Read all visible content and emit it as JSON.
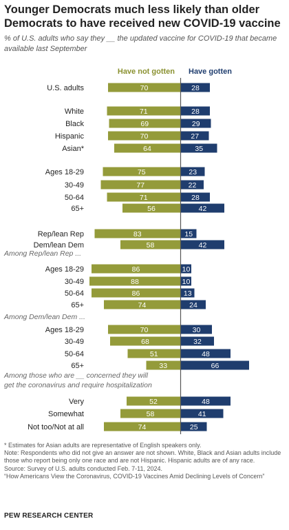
{
  "title": "Younger Democrats much less likely than older Democrats to have received new COVID-19 vaccine",
  "subtitle": "% of U.S. adults who say they __ the updated vaccine for COVID-19 that became available last September",
  "notes": [
    "* Estimates for Asian adults are representative of English speakers only.",
    "Note: Respondents who did not give an answer are not shown. White, Black and Asian adults include those who report being only one race and are not Hispanic. Hispanic adults are of any race.",
    "Source: Survey of U.S. adults conducted Feb. 7-11, 2024.",
    "“How Americans View the Coronavirus, COVID-19 Vaccines Amid Declining Levels of Concern”"
  ],
  "brand": "PEW RESEARCH CENTER",
  "colors": {
    "not_gotten": "#949B3A",
    "gotten": "#1F3D6E",
    "not_gotten_label": "#8A9130",
    "gotten_label": "#1F3D6E",
    "divider": "#555555"
  },
  "chart_data": {
    "type": "bar",
    "orientation": "horizontal-diverging",
    "series": [
      {
        "name": "Have not gotten",
        "values": [
          70,
          71,
          69,
          70,
          64,
          75,
          77,
          71,
          56,
          83,
          58,
          86,
          88,
          86,
          74,
          70,
          68,
          51,
          33,
          52,
          58,
          74
        ]
      },
      {
        "name": "Have gotten",
        "values": [
          28,
          28,
          29,
          27,
          35,
          23,
          22,
          28,
          42,
          15,
          42,
          10,
          10,
          13,
          24,
          30,
          32,
          48,
          66,
          48,
          41,
          25
        ]
      }
    ],
    "categories": [
      "U.S. adults",
      "White",
      "Black",
      "Hispanic",
      "Asian*",
      "Ages 18-29",
      "30-49",
      "50-64",
      "65+",
      "Rep/lean Rep",
      "Dem/lean Dem",
      "Ages 18-29",
      "30-49",
      "50-64",
      "65+",
      "Ages 18-29",
      "30-49",
      "50-64",
      "65+",
      "Very",
      "Somewhat",
      "Not too/Not at all"
    ],
    "section_labels": [
      "Among Rep/lean Rep ...",
      "Among Dem/lean Dem ...",
      "Among those who are __ concerned they will get the coronavirus and require hospitalization"
    ]
  }
}
